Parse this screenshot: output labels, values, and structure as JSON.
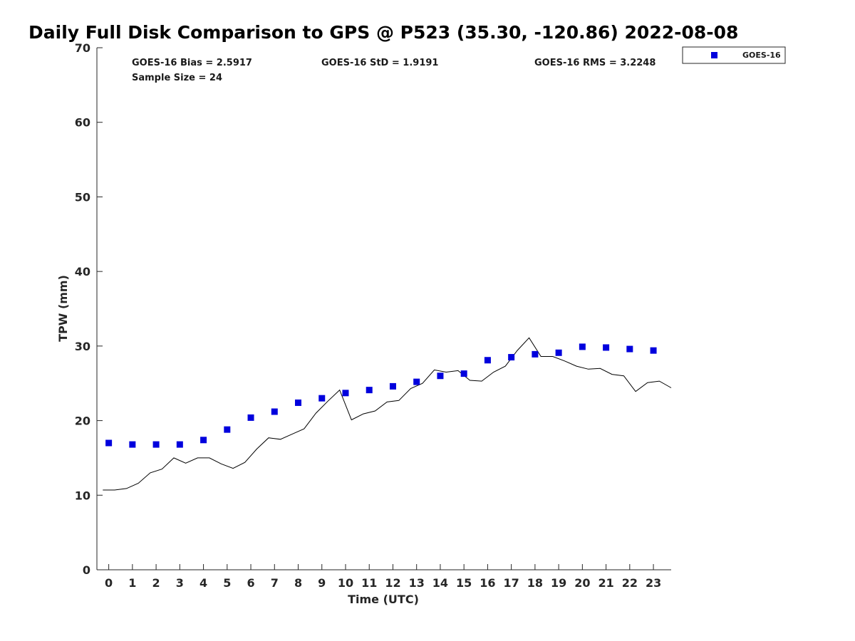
{
  "chart_data": {
    "type": "scatter",
    "title": "Daily Full Disk Comparison to GPS @ P523 (35.30, -120.86) 2022-08-08",
    "xlabel": "Time (UTC)",
    "ylabel": "TPW (mm)",
    "xlim": [
      -0.5,
      23.75
    ],
    "ylim": [
      0,
      70
    ],
    "x_ticks": [
      0,
      1,
      2,
      3,
      4,
      5,
      6,
      7,
      8,
      9,
      10,
      11,
      12,
      13,
      14,
      15,
      16,
      17,
      18,
      19,
      20,
      21,
      22,
      23
    ],
    "y_ticks": [
      0,
      10,
      20,
      30,
      40,
      50,
      60,
      70
    ],
    "grid": false,
    "legend_position": "top-right outside",
    "stats": {
      "bias": "GOES-16 Bias = 2.5917",
      "std": "GOES-16 StD = 1.9191",
      "rms": "GOES-16 RMS = 3.2248",
      "sample": "Sample Size = 24"
    },
    "series": [
      {
        "name": "GOES-16",
        "kind": "scatter",
        "marker": "square",
        "color": "#0000dd",
        "x": [
          0,
          1,
          2,
          3,
          4,
          5,
          6,
          7,
          8,
          9,
          10,
          11,
          12,
          13,
          14,
          15,
          16,
          17,
          18,
          19,
          20,
          21,
          22,
          23
        ],
        "y": [
          17.0,
          16.8,
          16.8,
          16.8,
          17.4,
          18.8,
          20.4,
          21.2,
          22.4,
          23.0,
          23.7,
          24.1,
          24.6,
          25.2,
          26.0,
          26.3,
          28.1,
          28.5,
          28.9,
          29.1,
          29.9,
          29.8,
          29.6,
          29.4
        ]
      },
      {
        "kind": "line",
        "color": "#000000",
        "x": [
          -0.25,
          0.25,
          0.75,
          1.25,
          1.75,
          2.25,
          2.75,
          3.25,
          3.75,
          4.25,
          4.75,
          5.25,
          5.75,
          6.25,
          6.75,
          7.25,
          7.75,
          8.25,
          8.75,
          9.25,
          9.75,
          10.25,
          10.75,
          11.25,
          11.75,
          12.25,
          12.75,
          13.25,
          13.75,
          14.25,
          14.75,
          15.25,
          15.75,
          16.25,
          16.75,
          17.25,
          17.75,
          18.25,
          18.75,
          19.25,
          19.75,
          20.25,
          20.75,
          21.25,
          21.75,
          22.25,
          22.75,
          23.25,
          23.75
        ],
        "y": [
          10.7,
          10.7,
          10.9,
          11.6,
          13.0,
          13.5,
          15.0,
          14.3,
          15.0,
          15.0,
          14.2,
          13.6,
          14.4,
          16.2,
          17.7,
          17.5,
          18.2,
          18.9,
          21.0,
          22.6,
          24.1,
          20.1,
          20.9,
          21.3,
          22.5,
          22.7,
          24.3,
          25.0,
          26.8,
          26.5,
          26.7,
          25.4,
          25.3,
          26.5,
          27.3,
          29.4,
          31.1,
          28.6,
          28.6,
          28.0,
          27.3,
          26.9,
          27.0,
          26.2,
          26.0,
          23.9,
          25.1,
          25.3,
          24.4
        ]
      }
    ]
  }
}
